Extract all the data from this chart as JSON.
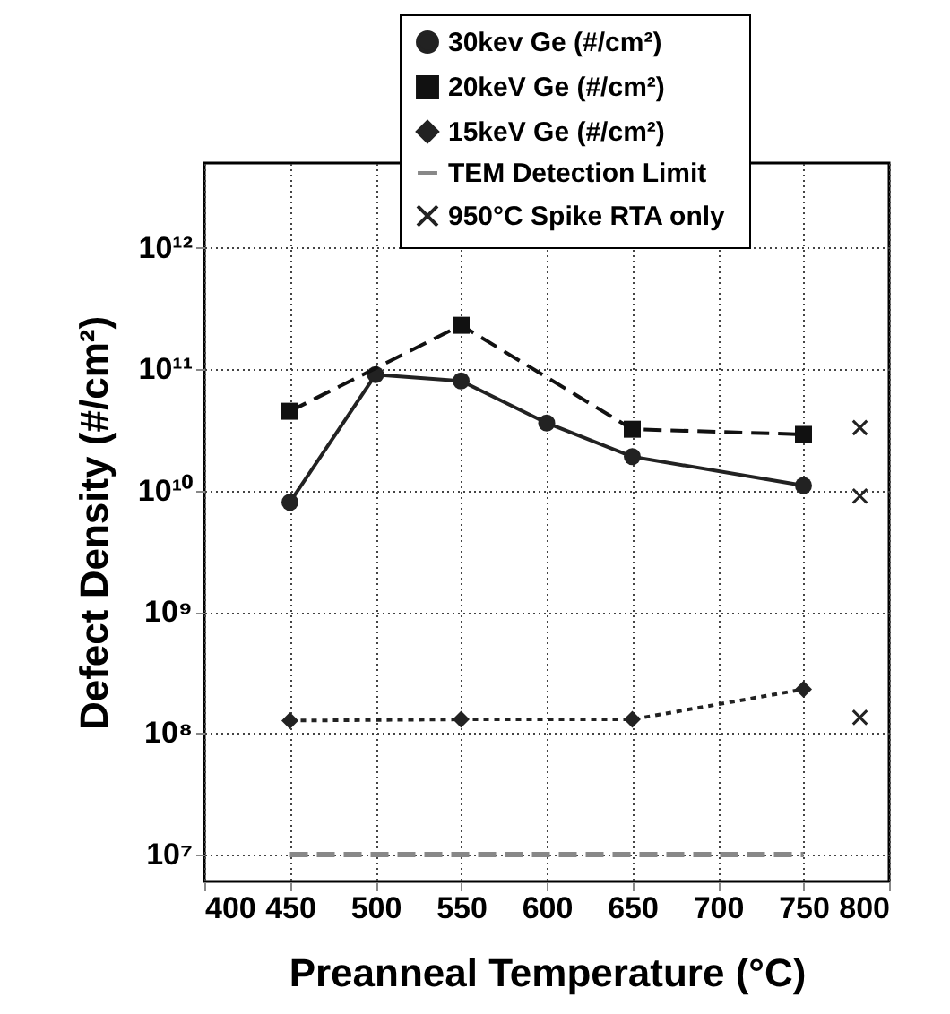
{
  "chart_data": {
    "type": "line",
    "xlabel": "Preanneal Temperature (°C)",
    "ylabel": "Defect Density (#/cm²)",
    "xlim": [
      400,
      800
    ],
    "xticks": [
      400,
      450,
      500,
      550,
      600,
      650,
      700,
      750,
      800
    ],
    "ylim": [
      6000000,
      5000000000000
    ],
    "log": true,
    "yticks": [
      {
        "value": 10000000,
        "label": "10⁷"
      },
      {
        "value": 100000000,
        "label": "10⁸"
      },
      {
        "value": 1000000000,
        "label": "10⁹"
      },
      {
        "value": 10000000000,
        "label": "10¹⁰"
      },
      {
        "value": 100000000000,
        "label": "10¹¹"
      },
      {
        "value": 1000000000000,
        "label": "10¹²"
      }
    ],
    "grid": true,
    "legend": "top right",
    "series": [
      {
        "name": "30kev Ge (#/cm²)",
        "color": "#222222",
        "marker": "circle",
        "line_style": "solid",
        "x": [
          450,
          500,
          550,
          600,
          650,
          750
        ],
        "values": [
          8000000000,
          90000000000,
          80000000000,
          36000000000,
          19000000000,
          11000000000
        ]
      },
      {
        "name": "20keV Ge (#/cm²)",
        "color": "#111111",
        "marker": "square",
        "line_style": "dashed",
        "x": [
          450,
          550,
          650,
          750
        ],
        "values": [
          45000000000,
          230000000000,
          32000000000,
          29000000000
        ]
      },
      {
        "name": "15keV Ge (#/cm²)",
        "color": "#222222",
        "marker": "diamond",
        "line_style": "dotted",
        "x": [
          450,
          550,
          650,
          750
        ],
        "values": [
          127000000,
          130000000,
          130000000,
          230000000
        ]
      },
      {
        "name": "TEM Detection Limit",
        "color": "#888888",
        "marker": "none",
        "line_style": "dashed",
        "x": [
          450,
          750
        ],
        "values": [
          10000000,
          10000000
        ]
      },
      {
        "name": "950°C Spike RTA  only",
        "type": "scatter",
        "color": "#222222",
        "marker": "cross",
        "x": [
          783,
          783,
          783
        ],
        "values": [
          33000000000,
          9000000000,
          135000000
        ]
      }
    ]
  }
}
